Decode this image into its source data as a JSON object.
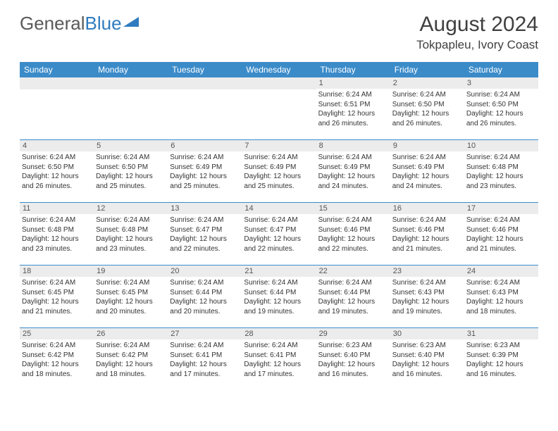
{
  "brand": {
    "general": "General",
    "blue": "Blue"
  },
  "title": {
    "month": "August 2024",
    "location": "Tokpapleu, Ivory Coast"
  },
  "colors": {
    "header_bg": "#3b8bc9",
    "header_text": "#ffffff",
    "daynum_bg": "#ececec",
    "border": "#3b8bc9",
    "text": "#333333",
    "logo_gray": "#5a5a5a",
    "logo_blue": "#2f7bbf"
  },
  "days_of_week": [
    "Sunday",
    "Monday",
    "Tuesday",
    "Wednesday",
    "Thursday",
    "Friday",
    "Saturday"
  ],
  "weeks": [
    [
      {
        "n": "",
        "sr": "",
        "ss": "",
        "dl": ""
      },
      {
        "n": "",
        "sr": "",
        "ss": "",
        "dl": ""
      },
      {
        "n": "",
        "sr": "",
        "ss": "",
        "dl": ""
      },
      {
        "n": "",
        "sr": "",
        "ss": "",
        "dl": ""
      },
      {
        "n": "1",
        "sr": "Sunrise: 6:24 AM",
        "ss": "Sunset: 6:51 PM",
        "dl": "Daylight: 12 hours and 26 minutes."
      },
      {
        "n": "2",
        "sr": "Sunrise: 6:24 AM",
        "ss": "Sunset: 6:50 PM",
        "dl": "Daylight: 12 hours and 26 minutes."
      },
      {
        "n": "3",
        "sr": "Sunrise: 6:24 AM",
        "ss": "Sunset: 6:50 PM",
        "dl": "Daylight: 12 hours and 26 minutes."
      }
    ],
    [
      {
        "n": "4",
        "sr": "Sunrise: 6:24 AM",
        "ss": "Sunset: 6:50 PM",
        "dl": "Daylight: 12 hours and 26 minutes."
      },
      {
        "n": "5",
        "sr": "Sunrise: 6:24 AM",
        "ss": "Sunset: 6:50 PM",
        "dl": "Daylight: 12 hours and 25 minutes."
      },
      {
        "n": "6",
        "sr": "Sunrise: 6:24 AM",
        "ss": "Sunset: 6:49 PM",
        "dl": "Daylight: 12 hours and 25 minutes."
      },
      {
        "n": "7",
        "sr": "Sunrise: 6:24 AM",
        "ss": "Sunset: 6:49 PM",
        "dl": "Daylight: 12 hours and 25 minutes."
      },
      {
        "n": "8",
        "sr": "Sunrise: 6:24 AM",
        "ss": "Sunset: 6:49 PM",
        "dl": "Daylight: 12 hours and 24 minutes."
      },
      {
        "n": "9",
        "sr": "Sunrise: 6:24 AM",
        "ss": "Sunset: 6:49 PM",
        "dl": "Daylight: 12 hours and 24 minutes."
      },
      {
        "n": "10",
        "sr": "Sunrise: 6:24 AM",
        "ss": "Sunset: 6:48 PM",
        "dl": "Daylight: 12 hours and 23 minutes."
      }
    ],
    [
      {
        "n": "11",
        "sr": "Sunrise: 6:24 AM",
        "ss": "Sunset: 6:48 PM",
        "dl": "Daylight: 12 hours and 23 minutes."
      },
      {
        "n": "12",
        "sr": "Sunrise: 6:24 AM",
        "ss": "Sunset: 6:48 PM",
        "dl": "Daylight: 12 hours and 23 minutes."
      },
      {
        "n": "13",
        "sr": "Sunrise: 6:24 AM",
        "ss": "Sunset: 6:47 PM",
        "dl": "Daylight: 12 hours and 22 minutes."
      },
      {
        "n": "14",
        "sr": "Sunrise: 6:24 AM",
        "ss": "Sunset: 6:47 PM",
        "dl": "Daylight: 12 hours and 22 minutes."
      },
      {
        "n": "15",
        "sr": "Sunrise: 6:24 AM",
        "ss": "Sunset: 6:46 PM",
        "dl": "Daylight: 12 hours and 22 minutes."
      },
      {
        "n": "16",
        "sr": "Sunrise: 6:24 AM",
        "ss": "Sunset: 6:46 PM",
        "dl": "Daylight: 12 hours and 21 minutes."
      },
      {
        "n": "17",
        "sr": "Sunrise: 6:24 AM",
        "ss": "Sunset: 6:46 PM",
        "dl": "Daylight: 12 hours and 21 minutes."
      }
    ],
    [
      {
        "n": "18",
        "sr": "Sunrise: 6:24 AM",
        "ss": "Sunset: 6:45 PM",
        "dl": "Daylight: 12 hours and 21 minutes."
      },
      {
        "n": "19",
        "sr": "Sunrise: 6:24 AM",
        "ss": "Sunset: 6:45 PM",
        "dl": "Daylight: 12 hours and 20 minutes."
      },
      {
        "n": "20",
        "sr": "Sunrise: 6:24 AM",
        "ss": "Sunset: 6:44 PM",
        "dl": "Daylight: 12 hours and 20 minutes."
      },
      {
        "n": "21",
        "sr": "Sunrise: 6:24 AM",
        "ss": "Sunset: 6:44 PM",
        "dl": "Daylight: 12 hours and 19 minutes."
      },
      {
        "n": "22",
        "sr": "Sunrise: 6:24 AM",
        "ss": "Sunset: 6:44 PM",
        "dl": "Daylight: 12 hours and 19 minutes."
      },
      {
        "n": "23",
        "sr": "Sunrise: 6:24 AM",
        "ss": "Sunset: 6:43 PM",
        "dl": "Daylight: 12 hours and 19 minutes."
      },
      {
        "n": "24",
        "sr": "Sunrise: 6:24 AM",
        "ss": "Sunset: 6:43 PM",
        "dl": "Daylight: 12 hours and 18 minutes."
      }
    ],
    [
      {
        "n": "25",
        "sr": "Sunrise: 6:24 AM",
        "ss": "Sunset: 6:42 PM",
        "dl": "Daylight: 12 hours and 18 minutes."
      },
      {
        "n": "26",
        "sr": "Sunrise: 6:24 AM",
        "ss": "Sunset: 6:42 PM",
        "dl": "Daylight: 12 hours and 18 minutes."
      },
      {
        "n": "27",
        "sr": "Sunrise: 6:24 AM",
        "ss": "Sunset: 6:41 PM",
        "dl": "Daylight: 12 hours and 17 minutes."
      },
      {
        "n": "28",
        "sr": "Sunrise: 6:24 AM",
        "ss": "Sunset: 6:41 PM",
        "dl": "Daylight: 12 hours and 17 minutes."
      },
      {
        "n": "29",
        "sr": "Sunrise: 6:23 AM",
        "ss": "Sunset: 6:40 PM",
        "dl": "Daylight: 12 hours and 16 minutes."
      },
      {
        "n": "30",
        "sr": "Sunrise: 6:23 AM",
        "ss": "Sunset: 6:40 PM",
        "dl": "Daylight: 12 hours and 16 minutes."
      },
      {
        "n": "31",
        "sr": "Sunrise: 6:23 AM",
        "ss": "Sunset: 6:39 PM",
        "dl": "Daylight: 12 hours and 16 minutes."
      }
    ]
  ]
}
